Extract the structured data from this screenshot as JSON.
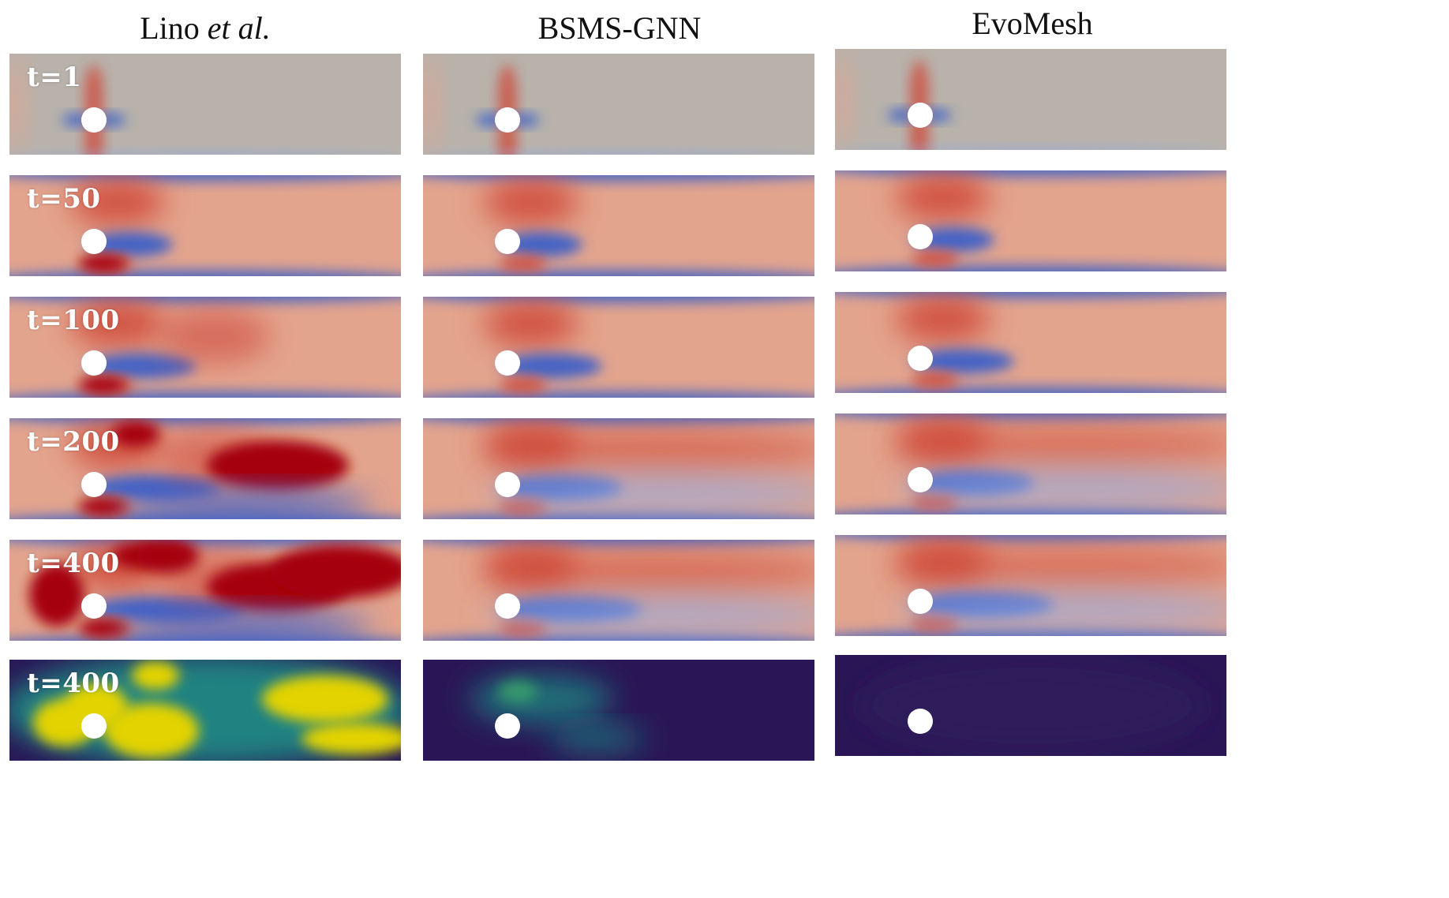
{
  "columns": [
    {
      "title_main": "Lino ",
      "title_italic": "et al.",
      "title_tail": ""
    },
    {
      "title_main": "BSMS-GNN",
      "title_italic": "",
      "title_tail": ""
    },
    {
      "title_main": "EvoMesh",
      "title_italic": "",
      "title_tail": ""
    }
  ],
  "rows": [
    {
      "time_label": "t=1",
      "colormap": "coolwarm"
    },
    {
      "time_label": "t=50",
      "colormap": "coolwarm"
    },
    {
      "time_label": "t=100",
      "colormap": "coolwarm"
    },
    {
      "time_label": "t=200",
      "colormap": "coolwarm"
    },
    {
      "time_label": "t=400",
      "colormap": "coolwarm"
    },
    {
      "time_label": "t=400",
      "colormap": "viridis-error"
    }
  ],
  "colors": {
    "background_neutral": "#b8b2ab",
    "flow_base": "#e3a48d",
    "red_strong": "#a50011",
    "red_mid": "#cf4a3b",
    "blue_strong": "#3b5fc8",
    "blue_light": "#8fa9e3",
    "error_dark": "#2a1656",
    "error_teal": "#1e8f86",
    "error_yellow": "#e3d300",
    "cylinder": "#ffffff"
  }
}
